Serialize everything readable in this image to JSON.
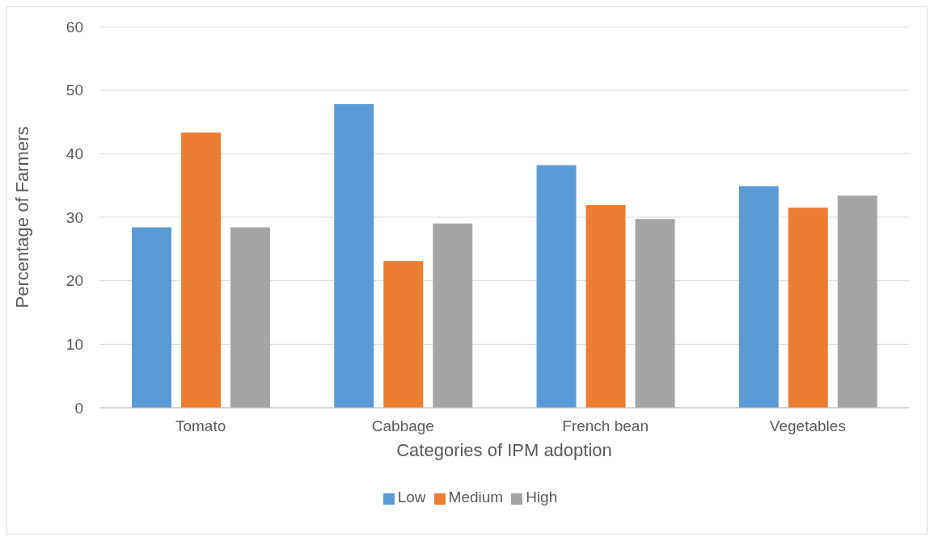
{
  "chart_data": {
    "type": "bar",
    "xlabel": "Categories of IPM adoption",
    "ylabel": "Percentage of Farmers",
    "categories": [
      "Tomato",
      "Cabbage",
      "French bean",
      "Vegetables"
    ],
    "series": [
      {
        "name": "Low",
        "color": "#5b9bd5",
        "values": [
          28.4,
          47.8,
          38.2,
          34.9
        ]
      },
      {
        "name": "Medium",
        "color": "#ed7d31",
        "values": [
          43.3,
          23.1,
          31.9,
          31.5
        ]
      },
      {
        "name": "High",
        "color": "#a5a5a5",
        "values": [
          28.4,
          29.0,
          29.7,
          33.4
        ]
      }
    ],
    "ylim": [
      0,
      60
    ],
    "yticks": [
      0,
      10,
      20,
      30,
      40,
      50,
      60
    ],
    "grid": "y",
    "legend": "bottom"
  }
}
